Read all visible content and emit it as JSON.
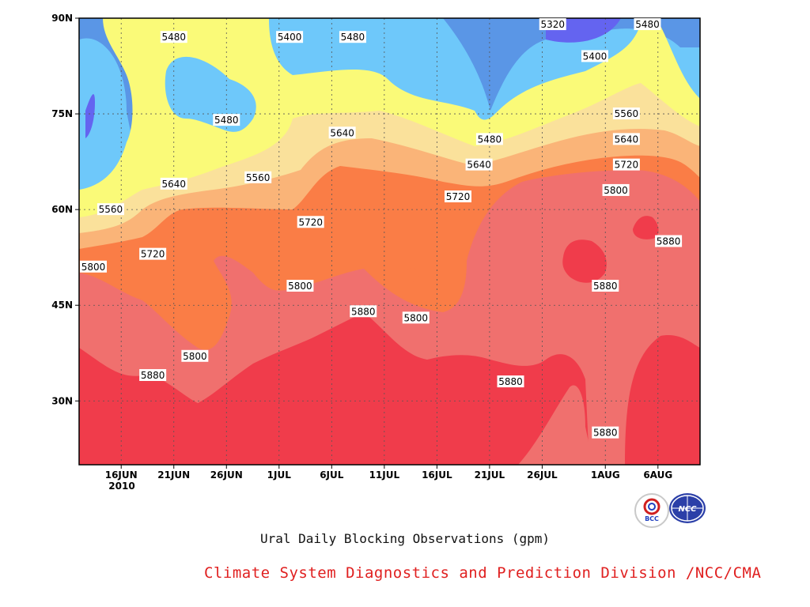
{
  "chart_data": {
    "type": "heatmap",
    "title": "Ural Daily Blocking Observations (gpm)",
    "year_label": "2010",
    "x_ticks": [
      "16JUN",
      "21JUN",
      "26JUN",
      "1JUL",
      "6JUL",
      "11JUL",
      "16JUL",
      "21JUL",
      "26JUL",
      "1AUG",
      "6AUG"
    ],
    "x_range": [
      "12JUN",
      "10AUG"
    ],
    "y_ticks": [
      "30N",
      "45N",
      "60N",
      "75N",
      "90N"
    ],
    "y_range": [
      20,
      90
    ],
    "grid": true,
    "levels": [
      5320,
      5400,
      5480,
      5560,
      5640,
      5720,
      5800,
      5880
    ],
    "level_colors": [
      "#6464f0",
      "#5a96e6",
      "#6ec8fa",
      "#fafa78",
      "#fae19b",
      "#fab478",
      "#fa7d46",
      "#f0706e",
      "#f03c4b"
    ],
    "contour_labels": [
      {
        "value": "5480",
        "date": "21JUN",
        "lat": 87
      },
      {
        "value": "5400",
        "date": "2JUL",
        "lat": 87
      },
      {
        "value": "5480",
        "date": "8JUL",
        "lat": 87
      },
      {
        "value": "5320",
        "date": "27JUL",
        "lat": 89
      },
      {
        "value": "5480",
        "date": "5AUG",
        "lat": 89
      },
      {
        "value": "5400",
        "date": "31JUL",
        "lat": 84
      },
      {
        "value": "5480",
        "date": "26JUN",
        "lat": 74
      },
      {
        "value": "5640",
        "date": "7JUL",
        "lat": 72
      },
      {
        "value": "5560",
        "date": "3AUG",
        "lat": 75
      },
      {
        "value": "5640",
        "date": "3AUG",
        "lat": 71
      },
      {
        "value": "5480",
        "date": "21JUL",
        "lat": 71
      },
      {
        "value": "5640",
        "date": "20JUL",
        "lat": 67
      },
      {
        "value": "5720",
        "date": "3AUG",
        "lat": 67
      },
      {
        "value": "5560",
        "date": "29JUN",
        "lat": 65
      },
      {
        "value": "5640",
        "date": "21JUN",
        "lat": 64
      },
      {
        "value": "5720",
        "date": "18JUL",
        "lat": 62
      },
      {
        "value": "5800",
        "date": "2AUG",
        "lat": 63
      },
      {
        "value": "5560",
        "date": "15JUN",
        "lat": 60
      },
      {
        "value": "5720",
        "date": "4JUL",
        "lat": 58
      },
      {
        "value": "5880",
        "date": "7AUG",
        "lat": 55
      },
      {
        "value": "5720",
        "date": "19JUN",
        "lat": 53
      },
      {
        "value": "5800",
        "date": "12JUN",
        "lat": 51
      },
      {
        "value": "5880",
        "date": "1AUG",
        "lat": 48
      },
      {
        "value": "5800",
        "date": "3JUL",
        "lat": 48
      },
      {
        "value": "5880",
        "date": "9JUL",
        "lat": 44
      },
      {
        "value": "5800",
        "date": "14JUL",
        "lat": 43
      },
      {
        "value": "5800",
        "date": "23JUN",
        "lat": 37
      },
      {
        "value": "5880",
        "date": "19JUN",
        "lat": 34
      },
      {
        "value": "5880",
        "date": "23JUL",
        "lat": 33
      },
      {
        "value": "5880",
        "date": "1AUG",
        "lat": 25
      }
    ]
  },
  "footer": {
    "credit": "Climate System Diagnostics and Prediction Division /NCC/CMA",
    "logo_left": "BCC",
    "logo_right": "NCC"
  }
}
